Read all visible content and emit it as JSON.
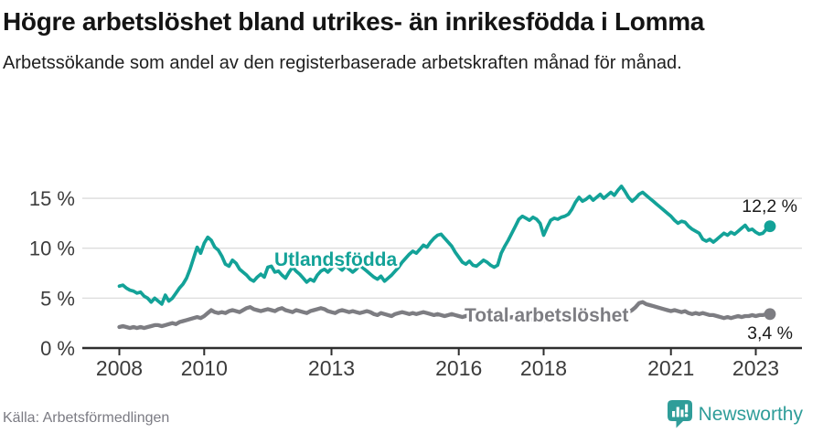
{
  "header": {
    "title": "Högre arbetslöshet bland utrikes- än inrikesfödda i Lomma",
    "subtitle": "Arbetssökande som andel av den registerbaserade arbetskraften månad för månad."
  },
  "footer": {
    "source": "Källa: Arbetsförmedlingen",
    "brand": "Newsworthy"
  },
  "colors": {
    "foreign_born": "#13A298",
    "total": "#7D7D82",
    "grid": "#DCDCDC",
    "axis": "#2E2E2E",
    "tick_text": "#3C3C3C",
    "value_text": "#1A1A1A",
    "brand_teal": "#2F9D99"
  },
  "chart_data": {
    "type": "line",
    "title": "Högre arbetslöshet bland utrikes- än inrikesfödda i Lomma",
    "subtitle": "Arbetssökande som andel av den registerbaserade arbetskraften månad för månad",
    "frequency": "monthly",
    "x_start": "2008-01",
    "x_end": "2023-05",
    "grid": "horizontal",
    "legend_position": "inline-labels",
    "ylim": [
      0,
      17.5
    ],
    "y_ticks": [
      {
        "label": "0 %",
        "value": 0
      },
      {
        "label": "5 %",
        "value": 5
      },
      {
        "label": "10 %",
        "value": 10
      },
      {
        "label": "15 %",
        "value": 15
      }
    ],
    "x_ticks": [
      {
        "label": "2008",
        "year": 2008
      },
      {
        "label": "2010",
        "year": 2010
      },
      {
        "label": "2013",
        "year": 2013
      },
      {
        "label": "2016",
        "year": 2016
      },
      {
        "label": "2018",
        "year": 2018
      },
      {
        "label": "2021",
        "year": 2021
      },
      {
        "label": "2023",
        "year": 2023
      }
    ],
    "series": [
      {
        "name": "Utlandsfödda",
        "color": "#13A298",
        "end_label": "12,2 %",
        "end_value": 12.2,
        "values": [
          6.2,
          6.3,
          6.0,
          5.8,
          5.7,
          5.5,
          5.6,
          5.2,
          5.0,
          4.6,
          5.0,
          4.7,
          4.4,
          5.3,
          4.7,
          5.0,
          5.5,
          6.0,
          6.4,
          7.0,
          7.9,
          9.0,
          10.1,
          9.5,
          10.5,
          11.1,
          10.8,
          10.1,
          9.8,
          9.2,
          8.4,
          8.2,
          8.8,
          8.5,
          7.9,
          7.6,
          7.3,
          6.9,
          6.7,
          7.1,
          7.4,
          7.1,
          8.1,
          8.2,
          7.6,
          7.7,
          7.3,
          7.0,
          7.6,
          8.1,
          7.7,
          7.4,
          7.0,
          6.6,
          6.9,
          6.7,
          7.3,
          7.7,
          7.9,
          7.6,
          8.0,
          8.4,
          8.1,
          7.8,
          8.2,
          7.9,
          7.6,
          7.9,
          8.3,
          8.0,
          7.7,
          7.4,
          7.1,
          6.9,
          7.2,
          6.7,
          7.0,
          7.3,
          7.7,
          8.1,
          8.6,
          9.0,
          9.4,
          9.7,
          9.5,
          9.9,
          10.3,
          10.1,
          10.6,
          11.0,
          11.3,
          11.4,
          11.0,
          10.6,
          10.2,
          9.6,
          9.1,
          8.6,
          8.4,
          8.7,
          8.3,
          8.2,
          8.5,
          8.8,
          8.6,
          8.3,
          8.1,
          8.3,
          9.5,
          10.2,
          10.8,
          11.5,
          12.2,
          12.9,
          13.2,
          13.0,
          12.8,
          13.1,
          12.9,
          12.5,
          11.3,
          12.1,
          12.8,
          13.0,
          12.9,
          13.1,
          13.2,
          13.4,
          13.9,
          14.6,
          15.1,
          14.7,
          14.9,
          15.2,
          14.8,
          15.1,
          15.4,
          15.0,
          15.3,
          15.6,
          15.3,
          15.8,
          16.2,
          15.7,
          15.1,
          14.7,
          15.0,
          15.4,
          15.6,
          15.3,
          15.0,
          14.7,
          14.4,
          14.1,
          13.8,
          13.5,
          13.2,
          12.8,
          12.5,
          12.7,
          12.6,
          12.2,
          11.9,
          11.7,
          11.5,
          10.9,
          10.7,
          10.9,
          10.6,
          10.9,
          11.2,
          11.5,
          11.3,
          11.6,
          11.4,
          11.7,
          12.0,
          12.3,
          11.8,
          11.9,
          11.6,
          11.4,
          11.5,
          11.9,
          12.2
        ]
      },
      {
        "name": "Total arbetslöshet",
        "color": "#7D7D82",
        "end_label": "3,4 %",
        "end_value": 3.4,
        "values": [
          2.1,
          2.2,
          2.1,
          2.0,
          2.1,
          2.0,
          2.1,
          2.0,
          2.1,
          2.2,
          2.3,
          2.3,
          2.2,
          2.3,
          2.4,
          2.5,
          2.4,
          2.6,
          2.7,
          2.8,
          2.9,
          3.0,
          3.1,
          3.0,
          3.2,
          3.5,
          3.8,
          3.6,
          3.5,
          3.6,
          3.5,
          3.7,
          3.8,
          3.7,
          3.6,
          3.8,
          4.0,
          4.1,
          3.9,
          3.8,
          3.7,
          3.8,
          3.9,
          3.8,
          3.7,
          3.9,
          4.0,
          3.8,
          3.7,
          3.6,
          3.8,
          3.7,
          3.6,
          3.5,
          3.7,
          3.8,
          3.9,
          4.0,
          3.9,
          3.7,
          3.6,
          3.5,
          3.7,
          3.8,
          3.7,
          3.6,
          3.7,
          3.6,
          3.5,
          3.6,
          3.7,
          3.6,
          3.4,
          3.3,
          3.5,
          3.4,
          3.3,
          3.2,
          3.4,
          3.5,
          3.6,
          3.5,
          3.4,
          3.5,
          3.4,
          3.5,
          3.6,
          3.5,
          3.4,
          3.3,
          3.4,
          3.3,
          3.2,
          3.3,
          3.4,
          3.3,
          3.2,
          3.1,
          3.2,
          3.3,
          3.2,
          3.1,
          3.0,
          3.1,
          3.2,
          3.1,
          3.0,
          2.9,
          3.0,
          2.9,
          3.0,
          3.1,
          3.0,
          2.9,
          3.0,
          2.9,
          2.8,
          2.9,
          3.0,
          2.9,
          2.8,
          2.9,
          3.0,
          2.9,
          2.8,
          2.9,
          3.0,
          3.1,
          3.0,
          2.9,
          3.0,
          3.1,
          3.0,
          3.1,
          3.2,
          3.1,
          3.2,
          3.3,
          3.4,
          3.3,
          3.2,
          3.3,
          3.4,
          3.5,
          3.6,
          3.8,
          4.1,
          4.5,
          4.6,
          4.4,
          4.3,
          4.2,
          4.1,
          4.0,
          3.9,
          3.8,
          3.7,
          3.8,
          3.7,
          3.6,
          3.7,
          3.5,
          3.4,
          3.5,
          3.4,
          3.5,
          3.4,
          3.3,
          3.3,
          3.2,
          3.1,
          3.0,
          3.1,
          3.0,
          3.1,
          3.2,
          3.1,
          3.2,
          3.2,
          3.3,
          3.2,
          3.3,
          3.3,
          3.4,
          3.4
        ]
      }
    ]
  }
}
